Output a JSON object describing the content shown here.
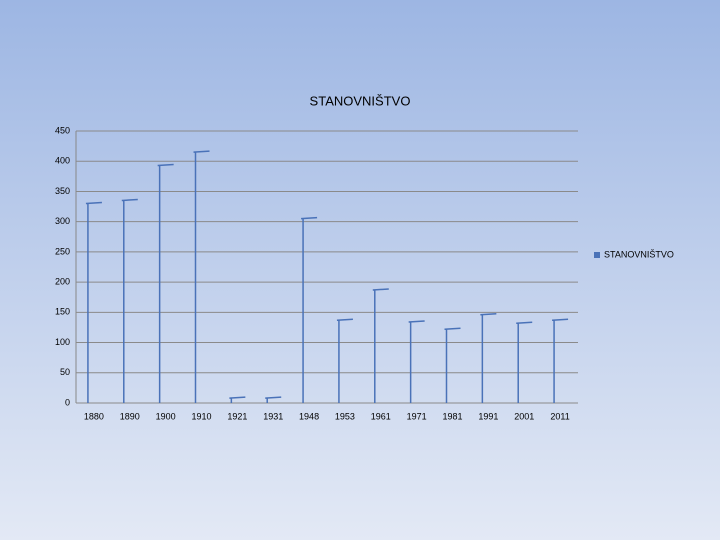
{
  "chart_data": {
    "type": "bar",
    "title": "STANOVNIŠTVO",
    "categories": [
      "1880",
      "1890",
      "1900",
      "1910",
      "1921",
      "1931",
      "1948",
      "1953",
      "1961",
      "1971",
      "1981",
      "1991",
      "2001",
      "2011"
    ],
    "series": [
      {
        "name": "STANOVNIŠTVO",
        "color": "#4a72b8",
        "values": [
          330,
          335,
          393,
          415,
          8,
          8,
          305,
          137,
          187,
          134,
          122,
          146,
          132,
          137
        ]
      }
    ],
    "ylim": [
      0,
      450
    ],
    "yticks": [
      0,
      50,
      100,
      150,
      200,
      250,
      300,
      350,
      400,
      450
    ],
    "grid": true,
    "legend": "right"
  }
}
